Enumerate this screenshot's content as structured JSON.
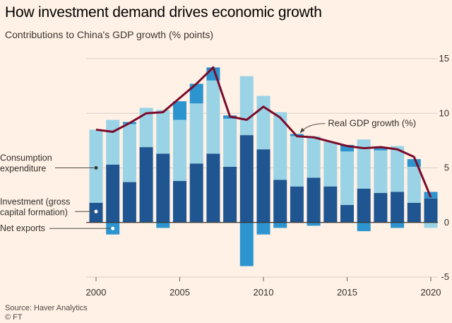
{
  "header": {
    "title": "How investment demand drives economic growth",
    "subtitle": "Contributions to China's GDP growth (% points)"
  },
  "footer": {
    "source": "Source: Haver Analytics",
    "credit": "© FT"
  },
  "colors": {
    "background": "#fff1e5",
    "consumption": "#9ad3e6",
    "investment": "#1f5591",
    "net_exports": "#2c95cf",
    "gdp_line": "#7b0a2a",
    "grid": "#d9cec5",
    "text": "#33302e"
  },
  "chart_data": {
    "type": "bar",
    "stacked": true,
    "title": "How investment demand drives economic growth",
    "subtitle": "Contributions to China's GDP growth (% points)",
    "xlabel": "",
    "ylabel": "",
    "ylim": [
      -5,
      15
    ],
    "yticks": [
      -5,
      0,
      5,
      10,
      15
    ],
    "xticks": [
      2000,
      2005,
      2010,
      2015,
      2020
    ],
    "categories": [
      2000,
      2001,
      2002,
      2003,
      2004,
      2005,
      2006,
      2007,
      2008,
      2009,
      2010,
      2011,
      2012,
      2013,
      2014,
      2015,
      2016,
      2017,
      2018,
      2019,
      2020
    ],
    "series": [
      {
        "name": "Investment (gross capital formation)",
        "key": "investment",
        "values": [
          1.8,
          5.3,
          3.7,
          6.9,
          6.3,
          3.8,
          5.4,
          6.3,
          5.1,
          8.0,
          6.7,
          3.9,
          3.3,
          4.1,
          3.3,
          1.6,
          3.1,
          2.7,
          2.8,
          1.8,
          2.2
        ]
      },
      {
        "name": "Consumption expenditure",
        "key": "consumption",
        "values": [
          6.7,
          4.1,
          5.3,
          3.6,
          4.0,
          5.6,
          5.5,
          6.7,
          4.4,
          5.4,
          4.9,
          6.2,
          4.6,
          3.8,
          4.1,
          4.9,
          4.5,
          3.9,
          4.2,
          3.3,
          -0.5
        ]
      },
      {
        "name": "Net exports",
        "key": "net_exports",
        "values": [
          0.0,
          -1.1,
          0.2,
          0.0,
          -0.5,
          1.7,
          1.8,
          1.2,
          0.3,
          -4.0,
          -1.1,
          -0.5,
          0.2,
          -0.3,
          0.0,
          0.6,
          -0.8,
          0.3,
          -0.5,
          0.7,
          0.6
        ]
      }
    ],
    "line": {
      "name": "Real GDP growth (%)",
      "values": [
        8.5,
        8.3,
        9.1,
        10.0,
        10.1,
        11.4,
        12.7,
        14.2,
        9.7,
        9.4,
        10.6,
        9.6,
        7.9,
        7.8,
        7.4,
        7.0,
        6.8,
        6.9,
        6.7,
        6.0,
        2.3
      ]
    },
    "legend": [
      {
        "label_lines": [
          "Consumption",
          "expenditure"
        ],
        "key": "consumption",
        "year": 2000
      },
      {
        "label_lines": [
          "Investment (gross",
          "capital formation)"
        ],
        "key": "investment",
        "year": 2000
      },
      {
        "label_lines": [
          "Net exports"
        ],
        "key": "net_exports",
        "year": 2001
      }
    ],
    "annotation": {
      "label": "Real GDP growth (%)",
      "year": 2012
    }
  }
}
